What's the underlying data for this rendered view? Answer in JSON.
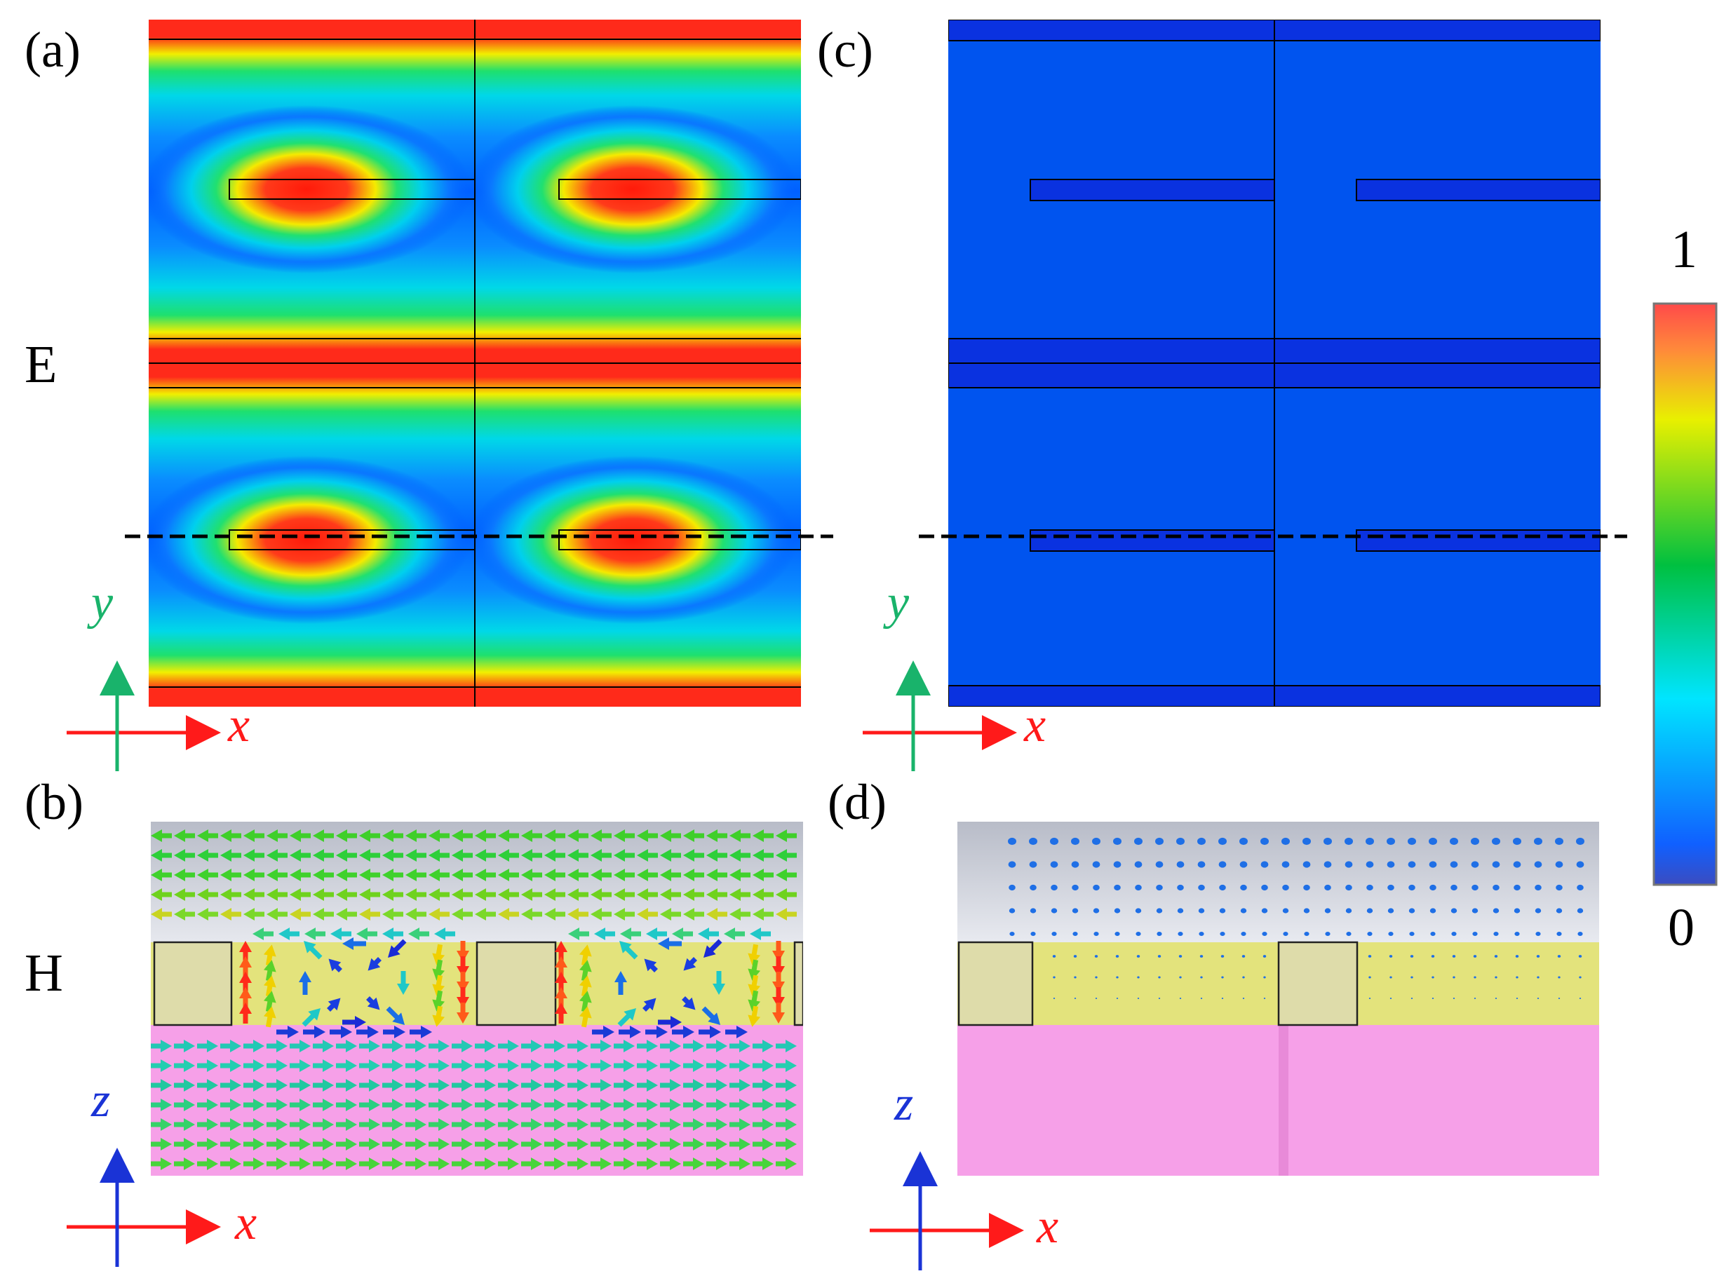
{
  "panels": {
    "a": {
      "label": "(a)"
    },
    "b": {
      "label": "(b)"
    },
    "c": {
      "label": "(c)"
    },
    "d": {
      "label": "(d)"
    }
  },
  "rows": {
    "e_label": "E",
    "h_label": "H"
  },
  "axes": {
    "a": {
      "horizontal": "x",
      "vertical": "y"
    },
    "b": {
      "horizontal": "x",
      "vertical": "z"
    },
    "c": {
      "horizontal": "x",
      "vertical": "y"
    },
    "d": {
      "horizontal": "x",
      "vertical": "z"
    }
  },
  "colorbar": {
    "max_label": "1",
    "min_label": "0",
    "min": 0,
    "max": 1,
    "colors": [
      "#3b4cc0",
      "#0064ff",
      "#00e5ff",
      "#00c040",
      "#e8f000",
      "#ff4a3a"
    ]
  },
  "colors": {
    "x_axis": "#ff1a1a",
    "y_axis": "#19b36b",
    "z_axis": "#1a33d6",
    "field_low": "#0050ff",
    "field_high": "#ff1a1a",
    "air_layer": "#c9cdd7",
    "dielectric_layer": "#e2e27a",
    "substrate_layer": "#f59de6"
  }
}
